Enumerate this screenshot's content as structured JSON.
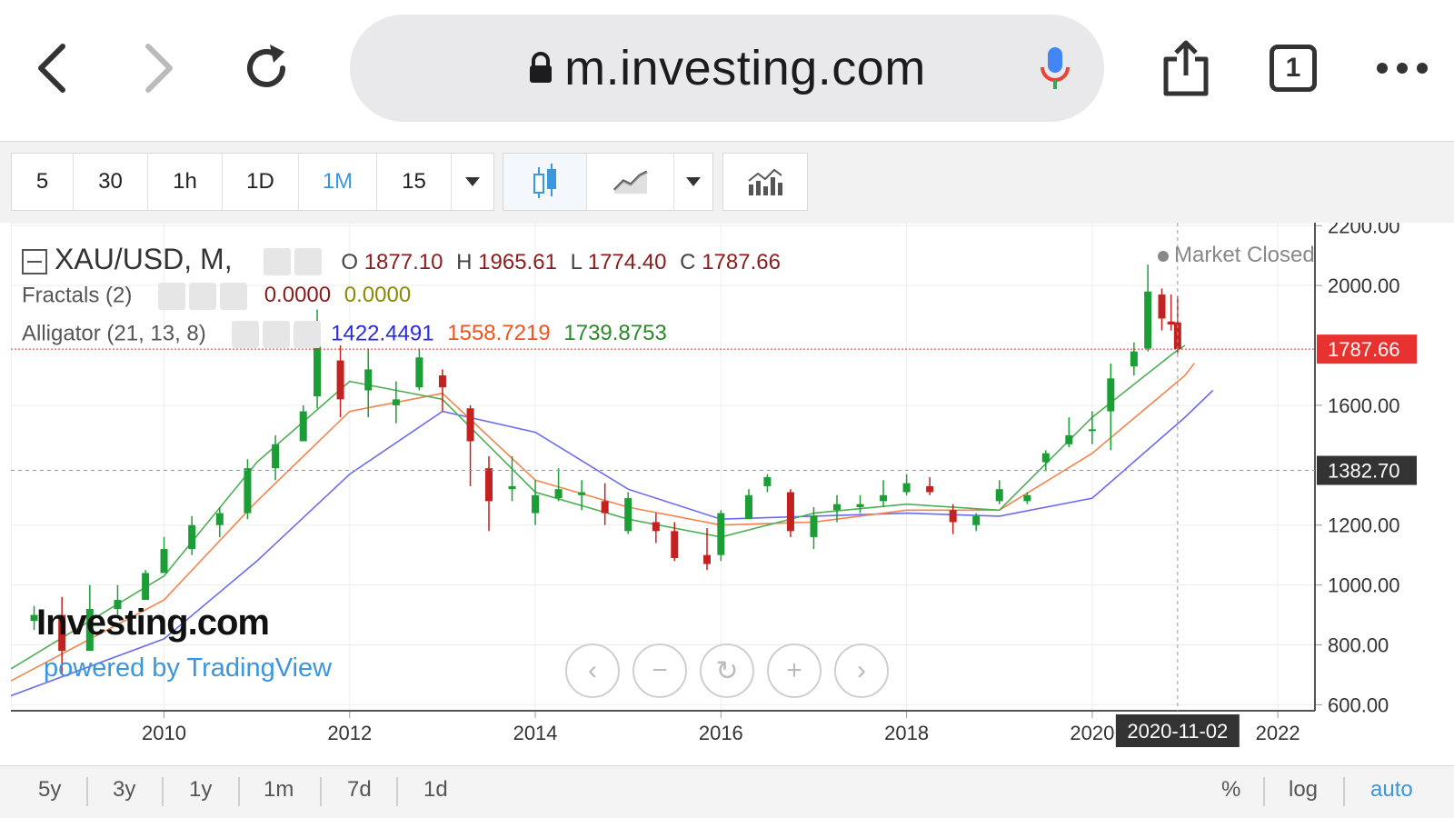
{
  "browser": {
    "url": "m.investing.com",
    "tab_count": "1",
    "icons": [
      "back-icon",
      "forward-icon",
      "reload-icon",
      "lock-icon",
      "microphone-icon",
      "share-icon",
      "tabs-icon",
      "more-icon"
    ]
  },
  "toolbar": {
    "intervals": [
      "5",
      "30",
      "1h",
      "1D",
      "1M",
      "15"
    ],
    "active_interval": "1M",
    "icons": [
      "candlestick-icon",
      "line-chart-icon",
      "dropdown-icon",
      "indicators-icon"
    ]
  },
  "legend": {
    "symbol": "XAU/USD, M,",
    "o_label": "O",
    "o_value": "1877.10",
    "h_label": "H",
    "h_value": "1965.61",
    "l_label": "L",
    "l_value": "1774.40",
    "c_label": "C",
    "c_value": "1787.66",
    "fractals_label": "Fractals (2)",
    "fractals_up": "0.0000",
    "fractals_down": "0.0000",
    "alligator_label": "Alligator (21, 13, 8)",
    "alligator_jaw": "1422.4491",
    "alligator_teeth": "1558.7219",
    "alligator_lips": "1739.8753",
    "market_status": "Market Closed"
  },
  "chart_data": {
    "type": "candlestick",
    "symbol": "XAU/USD",
    "interval": "M",
    "y_ticks": [
      "2200.00",
      "2000.00",
      "1600.00",
      "1200.00",
      "1000.00",
      "800.00",
      "600.00"
    ],
    "ylim": [
      580,
      2210
    ],
    "x_ticks": [
      "2010",
      "2012",
      "2014",
      "2016",
      "2018",
      "2020",
      "2022"
    ],
    "xlim": [
      2008.35,
      2022.4
    ],
    "last_price": "1787.66",
    "crosshair_price": "1382.70",
    "crosshair_date": "2020-11-02",
    "candles_o_h_l_c": [
      [
        2008.6,
        880,
        930,
        850,
        900
      ],
      [
        2008.9,
        900,
        960,
        700,
        780
      ],
      [
        2009.2,
        780,
        1000,
        800,
        920
      ],
      [
        2009.5,
        920,
        1000,
        900,
        950
      ],
      [
        2009.8,
        950,
        1050,
        960,
        1040
      ],
      [
        2010.0,
        1040,
        1160,
        1050,
        1120
      ],
      [
        2010.3,
        1120,
        1230,
        1100,
        1200
      ],
      [
        2010.6,
        1200,
        1260,
        1160,
        1240
      ],
      [
        2010.9,
        1240,
        1420,
        1220,
        1390
      ],
      [
        2011.2,
        1390,
        1500,
        1350,
        1470
      ],
      [
        2011.5,
        1480,
        1600,
        1480,
        1580
      ],
      [
        2011.65,
        1630,
        1920,
        1590,
        1820
      ],
      [
        2011.9,
        1750,
        1800,
        1560,
        1620
      ],
      [
        2012.2,
        1650,
        1790,
        1560,
        1720
      ],
      [
        2012.5,
        1600,
        1680,
        1540,
        1620
      ],
      [
        2012.75,
        1660,
        1790,
        1650,
        1760
      ],
      [
        2013.0,
        1700,
        1720,
        1580,
        1660
      ],
      [
        2013.3,
        1590,
        1600,
        1330,
        1480
      ],
      [
        2013.5,
        1390,
        1430,
        1180,
        1280
      ],
      [
        2013.75,
        1320,
        1430,
        1280,
        1330
      ],
      [
        2014.0,
        1240,
        1350,
        1200,
        1300
      ],
      [
        2014.25,
        1290,
        1390,
        1280,
        1320
      ],
      [
        2014.5,
        1300,
        1350,
        1250,
        1310
      ],
      [
        2014.75,
        1280,
        1340,
        1200,
        1240
      ],
      [
        2015.0,
        1180,
        1310,
        1170,
        1290
      ],
      [
        2015.3,
        1210,
        1240,
        1140,
        1180
      ],
      [
        2015.5,
        1180,
        1210,
        1080,
        1090
      ],
      [
        2015.85,
        1100,
        1190,
        1050,
        1070
      ],
      [
        2016.0,
        1100,
        1250,
        1080,
        1240
      ],
      [
        2016.3,
        1220,
        1320,
        1220,
        1300
      ],
      [
        2016.5,
        1330,
        1370,
        1310,
        1360
      ],
      [
        2016.75,
        1310,
        1320,
        1160,
        1180
      ],
      [
        2017.0,
        1160,
        1260,
        1120,
        1230
      ],
      [
        2017.25,
        1250,
        1300,
        1210,
        1270
      ],
      [
        2017.5,
        1260,
        1300,
        1240,
        1270
      ],
      [
        2017.75,
        1280,
        1350,
        1260,
        1300
      ],
      [
        2018.0,
        1310,
        1370,
        1300,
        1340
      ],
      [
        2018.25,
        1330,
        1360,
        1300,
        1310
      ],
      [
        2018.5,
        1250,
        1270,
        1170,
        1210
      ],
      [
        2018.75,
        1200,
        1240,
        1180,
        1230
      ],
      [
        2019.0,
        1280,
        1350,
        1270,
        1320
      ],
      [
        2019.3,
        1280,
        1310,
        1270,
        1300
      ],
      [
        2019.5,
        1410,
        1450,
        1380,
        1440
      ],
      [
        2019.75,
        1470,
        1560,
        1460,
        1500
      ],
      [
        2020.0,
        1520,
        1580,
        1470,
        1520
      ],
      [
        2020.2,
        1580,
        1740,
        1450,
        1690
      ],
      [
        2020.45,
        1730,
        1810,
        1700,
        1780
      ],
      [
        2020.6,
        1790,
        2070,
        1780,
        1980
      ],
      [
        2020.75,
        1970,
        1990,
        1850,
        1890
      ],
      [
        2020.85,
        1880,
        1970,
        1850,
        1870
      ],
      [
        2020.92,
        1877.1,
        1965.61,
        1774.4,
        1787.66
      ]
    ],
    "alligator_jaw": [
      [
        2008.35,
        630
      ],
      [
        2010,
        820
      ],
      [
        2011,
        1080
      ],
      [
        2012,
        1370
      ],
      [
        2013,
        1580
      ],
      [
        2014,
        1510
      ],
      [
        2015,
        1320
      ],
      [
        2016,
        1220
      ],
      [
        2017,
        1230
      ],
      [
        2018,
        1240
      ],
      [
        2019,
        1230
      ],
      [
        2020,
        1290
      ],
      [
        2021.0,
        1560
      ],
      [
        2021.3,
        1650
      ]
    ],
    "alligator_teeth": [
      [
        2008.35,
        680
      ],
      [
        2010,
        950
      ],
      [
        2011,
        1280
      ],
      [
        2012,
        1580
      ],
      [
        2013,
        1640
      ],
      [
        2014,
        1350
      ],
      [
        2015,
        1260
      ],
      [
        2016,
        1200
      ],
      [
        2017,
        1210
      ],
      [
        2018,
        1250
      ],
      [
        2019,
        1250
      ],
      [
        2020,
        1440
      ],
      [
        2021.0,
        1700
      ],
      [
        2021.1,
        1740
      ]
    ],
    "alligator_lips": [
      [
        2008.35,
        720
      ],
      [
        2010,
        1030
      ],
      [
        2011,
        1410
      ],
      [
        2012,
        1680
      ],
      [
        2013,
        1620
      ],
      [
        2014,
        1310
      ],
      [
        2015,
        1220
      ],
      [
        2016,
        1160
      ],
      [
        2017,
        1240
      ],
      [
        2018,
        1270
      ],
      [
        2019,
        1250
      ],
      [
        2020,
        1560
      ],
      [
        2020.9,
        1780
      ],
      [
        2021.0,
        1800
      ]
    ]
  },
  "watermark": {
    "logo": "Investing.com",
    "powered_by": "powered by TradingView"
  },
  "nav_controls": [
    "scroll-left-icon",
    "zoom-out-icon",
    "reset-icon",
    "zoom-in-icon",
    "scroll-right-icon"
  ],
  "bottom": {
    "ranges": [
      "5y",
      "3y",
      "1y",
      "1m",
      "7d",
      "1d"
    ],
    "percent": "%",
    "log": "log",
    "auto": "auto"
  },
  "colors": {
    "up_candle": "#1b9e36",
    "down_candle": "#c42121",
    "jaw": "#6b6bf0",
    "teeth": "#f4844c",
    "lips": "#4fae56",
    "price_tag": "#e8322f",
    "crosshair_tag": "#333333",
    "accent": "#3a96dd"
  }
}
